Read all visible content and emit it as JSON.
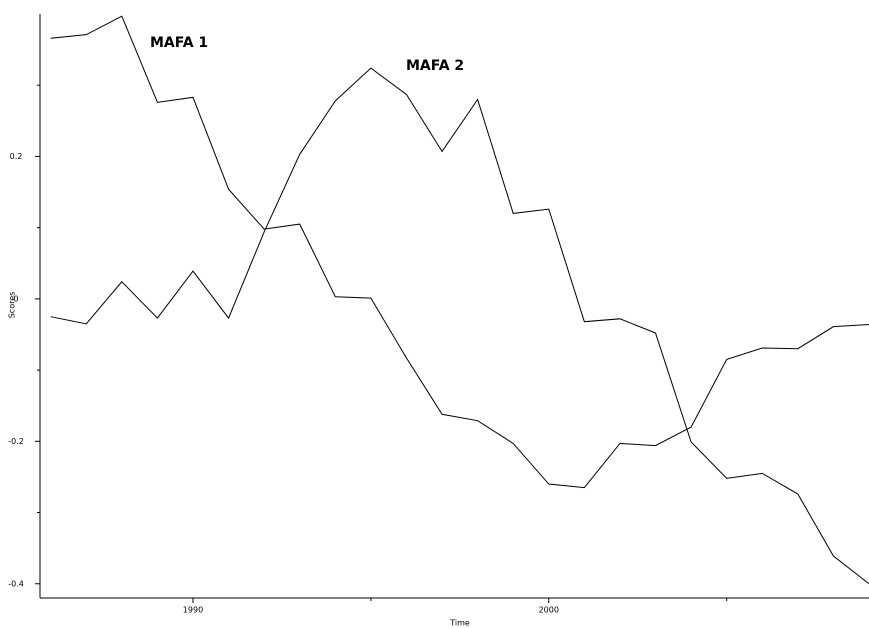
{
  "chart_data": {
    "type": "line",
    "x_label": "Time",
    "y_label": "Scores",
    "x": [
      1986,
      1987,
      1988,
      1989,
      1990,
      1991,
      1992,
      1993,
      1994,
      1995,
      1996,
      1997,
      1998,
      1999,
      2000,
      2001,
      2002,
      2003,
      2004,
      2005,
      2006,
      2007,
      2008,
      2009
    ],
    "series": [
      {
        "name": "MAFA 1",
        "color": "#000000",
        "values": [
          0.366,
          0.371,
          0.397,
          0.276,
          0.283,
          0.154,
          0.098,
          0.105,
          0.003,
          0.001,
          -0.083,
          -0.162,
          -0.171,
          -0.203,
          -0.26,
          -0.265,
          -0.203,
          -0.206,
          -0.18,
          -0.085,
          -0.069,
          -0.07,
          -0.039,
          -0.036
        ]
      },
      {
        "name": "MAFA 2",
        "color": "#000000",
        "values": [
          -0.025,
          -0.035,
          0.024,
          -0.027,
          0.039,
          -0.027,
          0.094,
          0.203,
          0.278,
          0.324,
          0.287,
          0.207,
          0.28,
          0.12,
          0.126,
          -0.032,
          -0.028,
          -0.048,
          -0.201,
          -0.252,
          -0.245,
          -0.274,
          -0.361,
          -0.4
        ]
      }
    ],
    "xlim": [
      1985.7,
      2009
    ],
    "xticks": [
      1990,
      2000
    ],
    "xminor_ticks": [
      1995,
      2005
    ],
    "ylim": [
      -0.42,
      0.4
    ],
    "yticks": [
      0.2,
      0,
      -0.2,
      -0.4
    ],
    "yminor_ticks": [
      0.3,
      0.1,
      -0.1,
      -0.3
    ]
  }
}
